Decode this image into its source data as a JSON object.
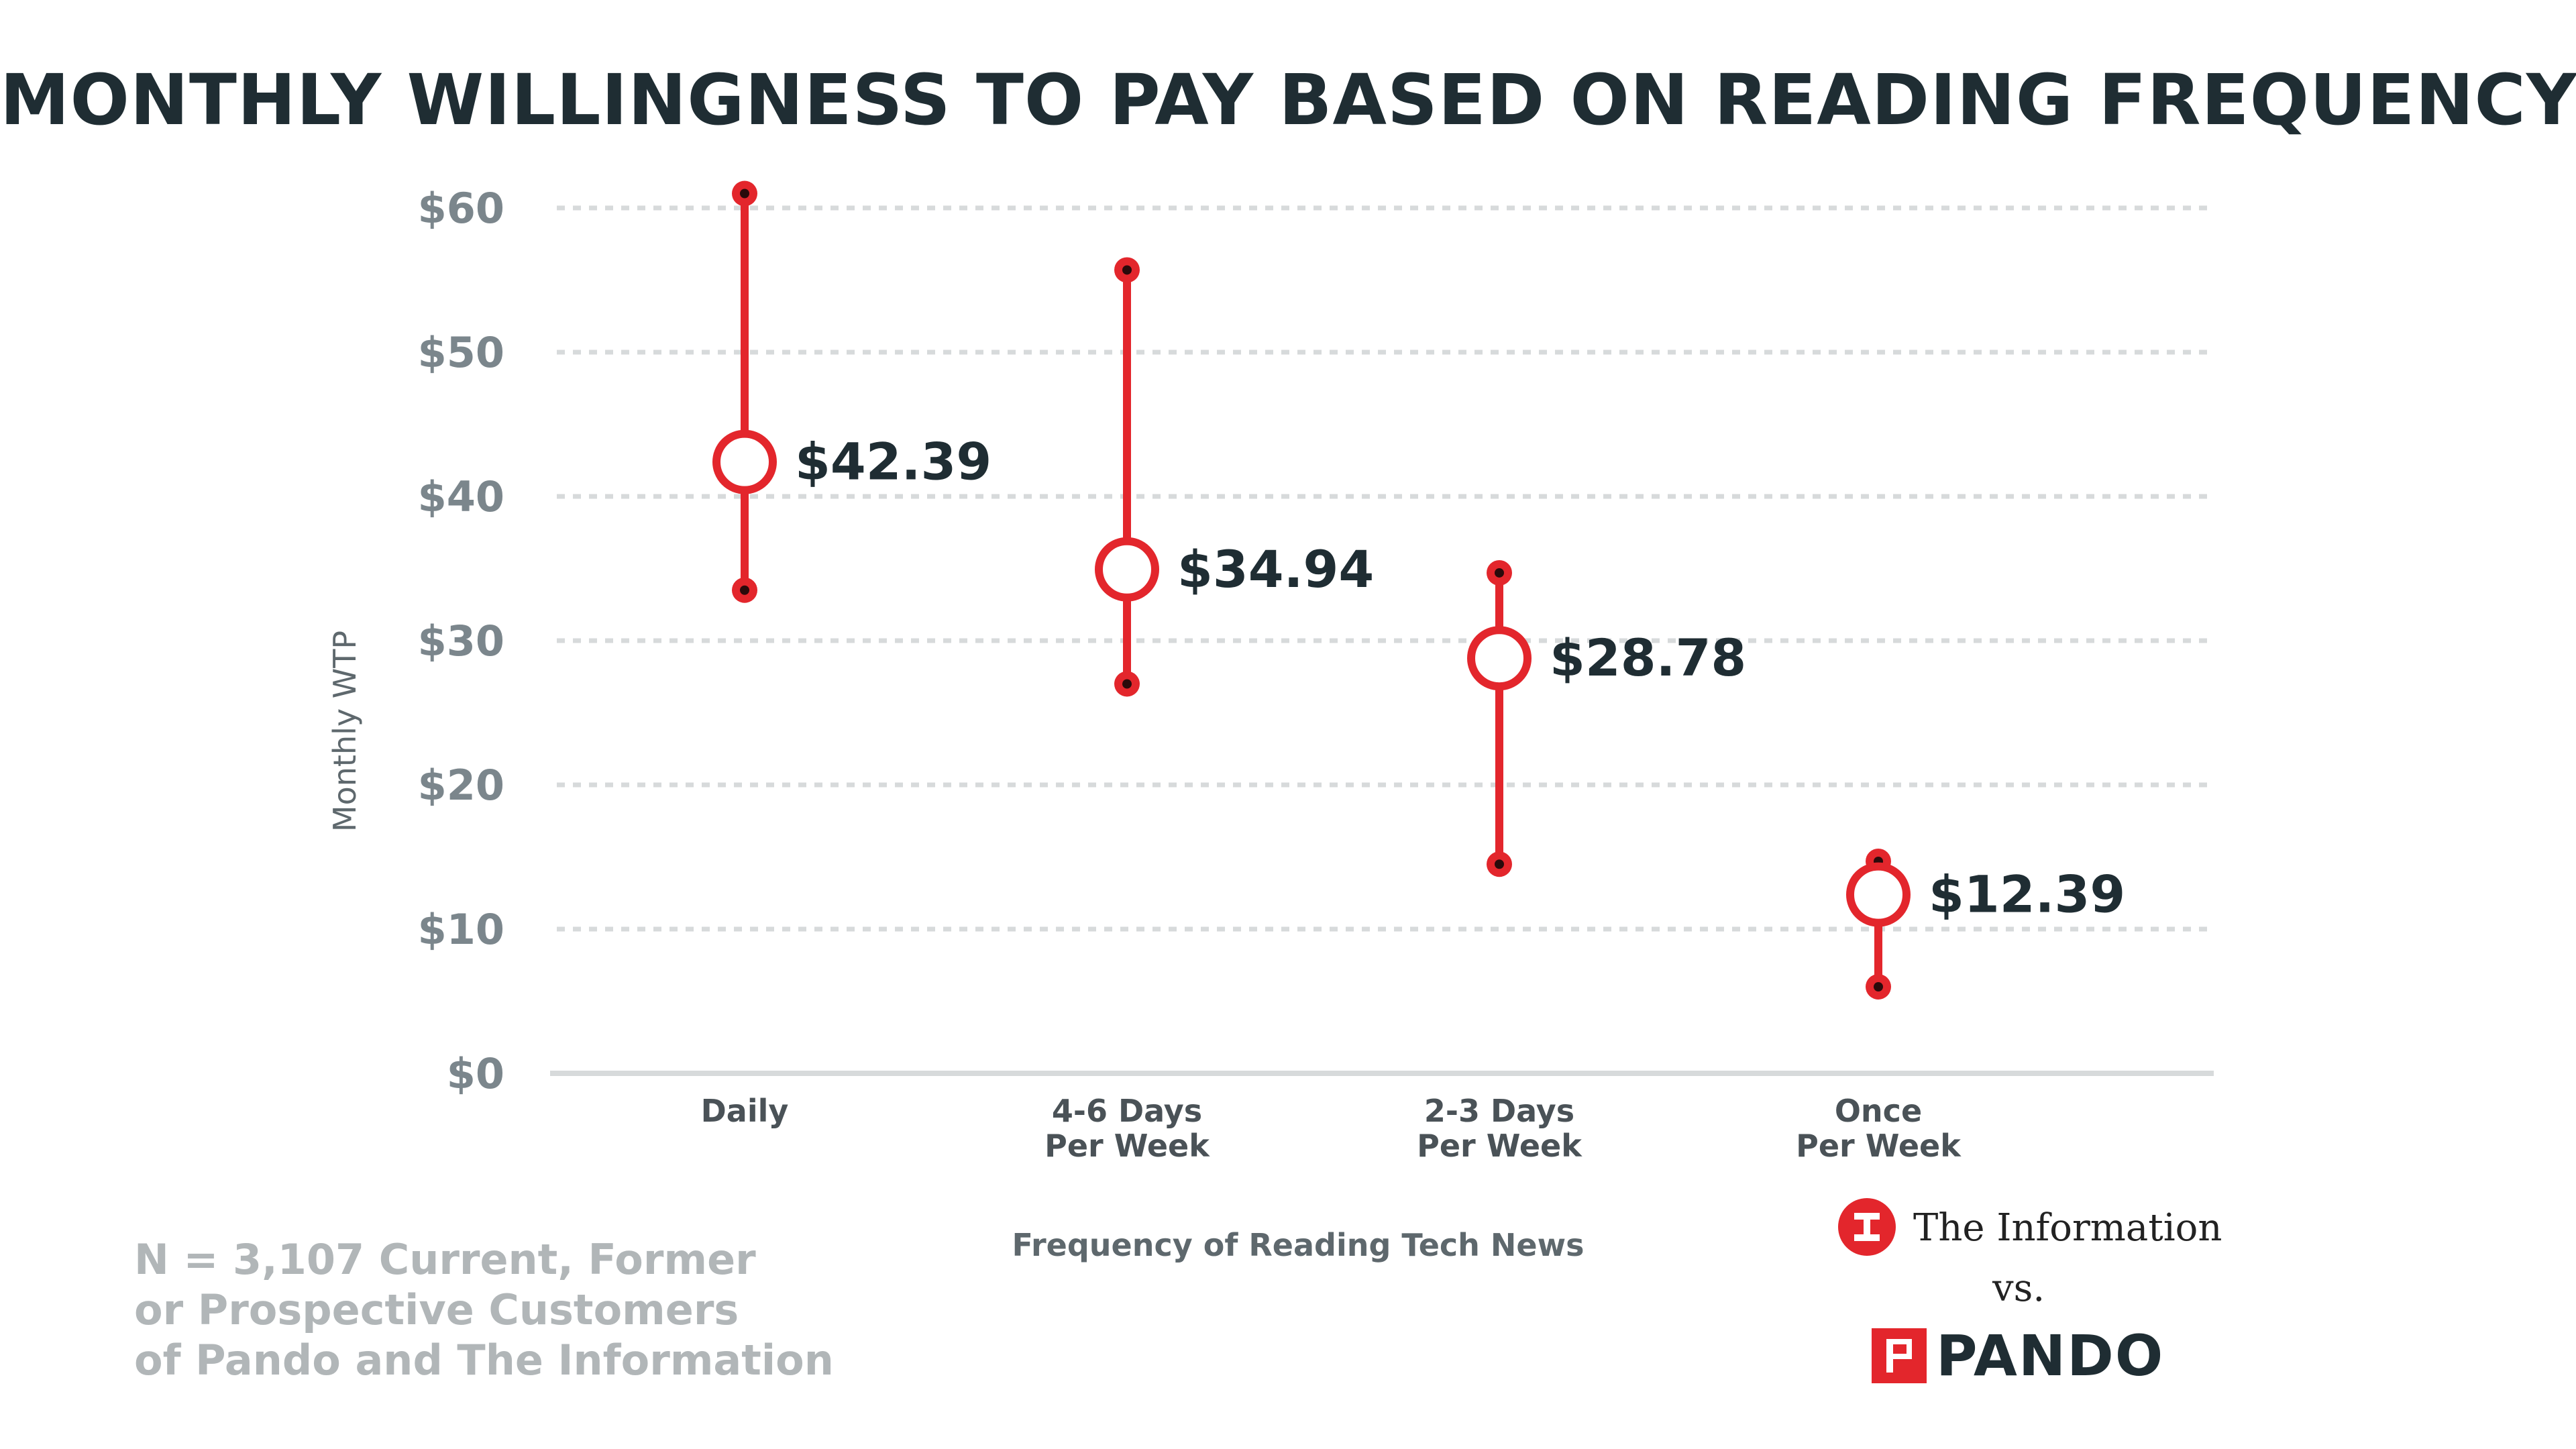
{
  "chart_data": {
    "type": "range",
    "title": "MONTHLY WILLINGNESS TO PAY BASED ON READING FREQUENCY",
    "ylabel": "Monthly WTP",
    "xlabel": "Frequency of Reading Tech News",
    "ylim": [
      0,
      60
    ],
    "yticks": [
      0,
      10,
      20,
      30,
      40,
      50,
      60
    ],
    "ytick_labels": [
      "$0",
      "$10",
      "$20",
      "$30",
      "$40",
      "$50",
      "$60"
    ],
    "grid": true,
    "categories": [
      {
        "lines": [
          "Daily"
        ]
      },
      {
        "lines": [
          "4-6 Days",
          "Per Week"
        ]
      },
      {
        "lines": [
          "2-3 Days",
          "Per Week"
        ]
      },
      {
        "lines": [
          "Once",
          "Per Week"
        ]
      }
    ],
    "series": [
      {
        "mean": [
          42.39,
          34.94,
          28.78,
          12.39
        ],
        "low": [
          33.5,
          27.0,
          14.5,
          6.0
        ],
        "high": [
          61.0,
          55.7,
          34.7,
          14.7
        ],
        "mean_labels": [
          "$42.39",
          "$34.94",
          "$28.78",
          "$12.39"
        ]
      }
    ],
    "colors": {
      "range": "#e3262c",
      "grid": "#d7dadb",
      "label": "#1f2d33"
    }
  },
  "footnote": {
    "lines": [
      "N = 3,107 Current, Former",
      "or Prospective Customers",
      "of Pando and The Information"
    ]
  },
  "brands": {
    "information_name": "The Information",
    "vs": "vs.",
    "pando_name": "PANDO",
    "information_icon": "the-information-logo-icon",
    "pando_icon": "pando-logo-icon"
  }
}
